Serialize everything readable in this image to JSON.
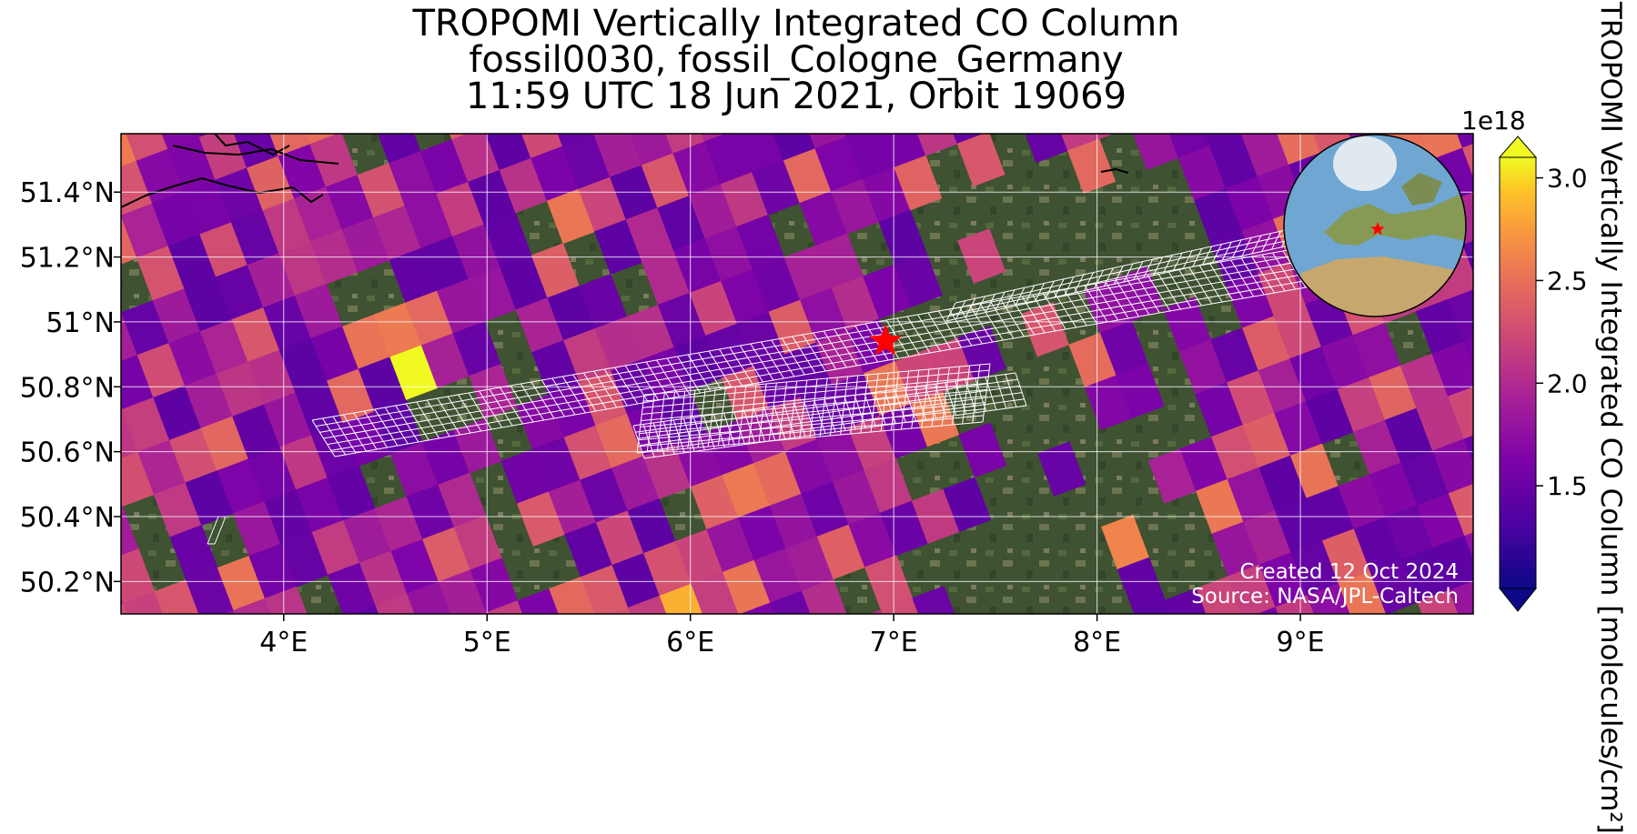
{
  "title": {
    "line1": "TROPOMI Vertically Integrated CO Column",
    "line2": "fossil0030, fossil_Cologne_Germany",
    "line3": "11:59 UTC 18 Jun 2021, Orbit 19069"
  },
  "map": {
    "lon_range": [
      3.2,
      9.85
    ],
    "lat_range": [
      50.1,
      51.58
    ],
    "lon_ticks": [
      {
        "value": 4,
        "label": "4°E"
      },
      {
        "value": 5,
        "label": "5°E"
      },
      {
        "value": 6,
        "label": "6°E"
      },
      {
        "value": 7,
        "label": "7°E"
      },
      {
        "value": 8,
        "label": "8°E"
      },
      {
        "value": 9,
        "label": "9°E"
      }
    ],
    "lat_ticks": [
      {
        "value": 51.4,
        "label": "51.4°N"
      },
      {
        "value": 51.2,
        "label": "51.2°N"
      },
      {
        "value": 51.0,
        "label": "51°N"
      },
      {
        "value": 50.8,
        "label": "50.8°N"
      },
      {
        "value": 50.6,
        "label": "50.6°N"
      },
      {
        "value": 50.4,
        "label": "50.4°N"
      },
      {
        "value": 50.2,
        "label": "50.2°N"
      }
    ],
    "gridlines": true,
    "target": {
      "lon": 6.96,
      "lat": 50.94,
      "color": "#ff0000"
    },
    "pixel_color_range": [
      "#0d0887",
      "#f0f921"
    ]
  },
  "credits": {
    "created": "Created 12 Oct 2024",
    "source": "Source: NASA/JPL-Caltech"
  },
  "colorbar": {
    "label": "TROPOMI Vertically Integrated CO Column [molecules/cm²]",
    "exponent": "1e18",
    "min": 1.0,
    "max": 3.1,
    "ticks": [
      {
        "value": 1.5,
        "label": "1.5"
      },
      {
        "value": 2.0,
        "label": "2.0"
      },
      {
        "value": 2.5,
        "label": "2.5"
      },
      {
        "value": 3.0,
        "label": "3.0"
      }
    ],
    "cmap": "plasma",
    "extend": "both"
  },
  "inset": {
    "type": "globe",
    "marker_color": "#ff0000"
  }
}
